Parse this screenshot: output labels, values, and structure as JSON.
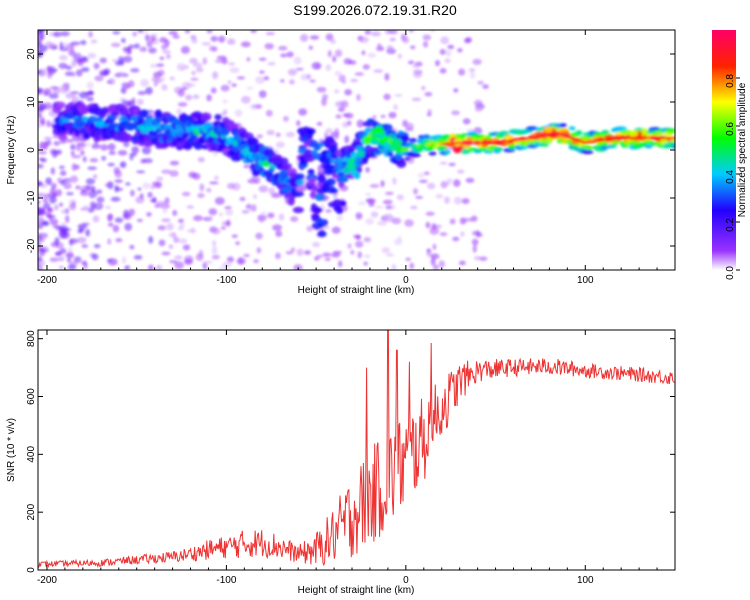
{
  "figure": {
    "title": "S199.2026.072.19.31.R20"
  },
  "chart_data": [
    {
      "type": "heatmap",
      "name": "spectrogram",
      "title": "S199.2026.072.19.31.R20",
      "xlabel": "Height of straight line (km)",
      "ylabel": "Frequency (Hz)",
      "xlim": [
        -205,
        150
      ],
      "ylim": [
        -25,
        25
      ],
      "xticks": [
        -200,
        -100,
        0,
        100
      ],
      "yticks": [
        -20,
        -10,
        0,
        10,
        20
      ],
      "colorbar": {
        "label": "Normalized spectral amplitude",
        "range": [
          0,
          1
        ],
        "ticks": [
          "0.0",
          "0.2",
          "0.4",
          "0.6",
          "0.8"
        ],
        "colors": [
          "#ffffff",
          "#9933ff",
          "#2200ff",
          "#00ccff",
          "#00ff00",
          "#ffff00",
          "#ff2200",
          "#ff0066"
        ]
      },
      "ridge": {
        "description_points": [
          {
            "x": -190,
            "y": 6,
            "a": 0.3
          },
          {
            "x": -170,
            "y": 6,
            "a": 0.35
          },
          {
            "x": -150,
            "y": 5,
            "a": 0.35
          },
          {
            "x": -130,
            "y": 4,
            "a": 0.4
          },
          {
            "x": -110,
            "y": 4,
            "a": 0.4
          },
          {
            "x": -100,
            "y": 3,
            "a": 0.35
          },
          {
            "x": -90,
            "y": 0,
            "a": 0.4
          },
          {
            "x": -80,
            "y": -2,
            "a": 0.45
          },
          {
            "x": -70,
            "y": -5,
            "a": 0.4
          },
          {
            "x": -60,
            "y": -9,
            "a": 0.3
          },
          {
            "x": -50,
            "y": -15,
            "a": 0.25
          },
          {
            "x": -55,
            "y": 3,
            "a": 0.25
          },
          {
            "x": -45,
            "y": 0,
            "a": 0.3
          },
          {
            "x": -35,
            "y": -4,
            "a": 0.4
          },
          {
            "x": -25,
            "y": 0,
            "a": 0.45
          },
          {
            "x": -20,
            "y": 3,
            "a": 0.55
          },
          {
            "x": -10,
            "y": 2,
            "a": 0.55
          },
          {
            "x": 0,
            "y": 0,
            "a": 0.55
          },
          {
            "x": 10,
            "y": 1,
            "a": 0.6
          },
          {
            "x": 30,
            "y": 1.5,
            "a": 0.95
          },
          {
            "x": 50,
            "y": 1.5,
            "a": 0.9
          },
          {
            "x": 70,
            "y": 2.5,
            "a": 0.9
          },
          {
            "x": 85,
            "y": 3.5,
            "a": 0.95
          },
          {
            "x": 100,
            "y": 1.5,
            "a": 0.85
          },
          {
            "x": 120,
            "y": 2.5,
            "a": 0.9
          },
          {
            "x": 150,
            "y": 2.5,
            "a": 0.85
          }
        ]
      }
    },
    {
      "type": "line",
      "name": "snr",
      "title": "",
      "xlabel": "Height of straight line (km)",
      "ylabel": "SNR (10 * v/v)",
      "xlim": [
        -205,
        150
      ],
      "ylim": [
        0,
        830
      ],
      "xticks": [
        -200,
        -100,
        0,
        100
      ],
      "yticks": [
        0,
        200,
        400,
        600,
        800
      ],
      "series": [
        {
          "name": "SNR",
          "color": "#ee3333",
          "x": [
            -205,
            -190,
            -170,
            -150,
            -130,
            -120,
            -110,
            -100,
            -90,
            -80,
            -70,
            -60,
            -50,
            -40,
            -30,
            -20,
            -10,
            0,
            10,
            20,
            30,
            40,
            60,
            80,
            100,
            120,
            140,
            150
          ],
          "y": [
            20,
            22,
            25,
            35,
            45,
            55,
            70,
            80,
            90,
            95,
            80,
            55,
            70,
            120,
            190,
            250,
            310,
            380,
            450,
            560,
            650,
            690,
            700,
            705,
            690,
            680,
            670,
            665
          ],
          "noise": [
            10,
            10,
            12,
            15,
            20,
            25,
            35,
            40,
            50,
            50,
            45,
            30,
            60,
            100,
            150,
            170,
            180,
            170,
            150,
            110,
            70,
            40,
            30,
            30,
            25,
            25,
            25,
            25
          ],
          "spikes": [
            {
              "x": -10,
              "y": 830
            },
            {
              "x": -22,
              "y": 700
            },
            {
              "x": -5,
              "y": 760
            },
            {
              "x": 14,
              "y": 785
            },
            {
              "x": 2,
              "y": 720
            }
          ]
        }
      ]
    }
  ]
}
